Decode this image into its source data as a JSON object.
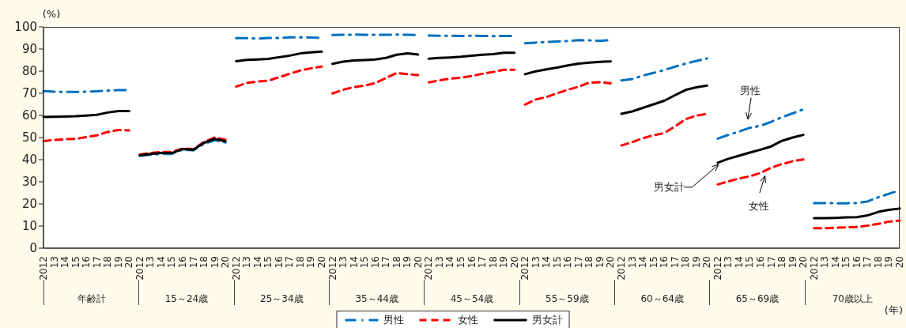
{
  "chart_data": {
    "type": "line",
    "ylabel": "(%)",
    "xlabel": "(年)",
    "categories": [
      "2012",
      "13",
      "14",
      "15",
      "16",
      "17",
      "18",
      "19",
      "20",
      "2012",
      "13",
      "14",
      "15",
      "16",
      "17",
      "18",
      "19",
      "20",
      "2012",
      "13",
      "14",
      "15",
      "16",
      "17",
      "18",
      "19",
      "20",
      "2012",
      "13",
      "14",
      "15",
      "16",
      "17",
      "18",
      "19",
      "20",
      "2012",
      "13",
      "14",
      "15",
      "16",
      "17",
      "18",
      "19",
      "20",
      "2012",
      "13",
      "14",
      "15",
      "16",
      "17",
      "18",
      "19",
      "20",
      "2012",
      "13",
      "14",
      "15",
      "16",
      "17",
      "18",
      "19",
      "20",
      "2012",
      "13",
      "14",
      "15",
      "16",
      "17",
      "18",
      "19",
      "20",
      "2012",
      "13",
      "14",
      "15",
      "16",
      "17",
      "18",
      "19",
      "20"
    ],
    "series": [
      {
        "name": "男性",
        "color": "#0070c0",
        "line_style": "dashdot",
        "values": [
          71.0,
          70.7,
          70.6,
          70.6,
          70.7,
          70.9,
          71.2,
          71.4,
          71.4,
          41.7,
          42.2,
          42.6,
          42.6,
          44.6,
          44.2,
          47.2,
          48.8,
          47.8,
          94.9,
          94.9,
          94.7,
          95.0,
          95.0,
          95.3,
          95.3,
          95.2,
          95.1,
          96.3,
          96.4,
          96.5,
          96.4,
          96.4,
          96.4,
          96.5,
          96.4,
          96.3,
          96.1,
          96.0,
          96.0,
          95.9,
          96.0,
          95.9,
          95.8,
          95.9,
          95.9,
          92.6,
          92.9,
          93.2,
          93.4,
          93.6,
          94.0,
          93.9,
          93.7,
          94.0,
          75.8,
          76.4,
          78.0,
          79.2,
          80.5,
          82.0,
          83.4,
          84.6,
          85.7,
          49.5,
          51.2,
          52.7,
          54.4,
          55.3,
          57.1,
          59.2,
          60.9,
          62.7,
          20.4,
          20.4,
          20.3,
          20.3,
          20.4,
          21.1,
          23.0,
          24.6,
          26.1
        ]
      },
      {
        "name": "女性",
        "color": "#ff0000",
        "line_style": "dashed",
        "values": [
          48.4,
          48.9,
          49.2,
          49.4,
          50.2,
          51.0,
          52.5,
          53.4,
          53.2,
          42.3,
          43.0,
          43.5,
          43.5,
          45.0,
          44.8,
          48.0,
          50.0,
          49.0,
          73.0,
          74.7,
          75.3,
          75.7,
          77.2,
          78.8,
          80.3,
          81.3,
          82.1,
          69.9,
          71.6,
          72.8,
          73.4,
          74.6,
          76.9,
          79.2,
          78.6,
          78.2,
          74.9,
          75.8,
          76.6,
          77.0,
          77.8,
          78.8,
          79.6,
          80.6,
          80.6,
          64.9,
          67.2,
          68.3,
          70.0,
          71.6,
          73.0,
          74.8,
          75.0,
          74.5,
          46.4,
          47.9,
          49.7,
          51.0,
          52.0,
          55.0,
          58.3,
          59.9,
          60.7,
          28.8,
          30.2,
          31.5,
          32.5,
          34.0,
          36.4,
          38.0,
          39.3,
          40.1,
          9.0,
          9.0,
          9.2,
          9.4,
          9.6,
          10.2,
          11.0,
          12.0,
          12.5
        ]
      },
      {
        "name": "男女計",
        "color": "#000000",
        "line_style": "solid",
        "values": [
          59.3,
          59.4,
          59.5,
          59.6,
          59.9,
          60.3,
          61.3,
          62.0,
          62.0,
          42.0,
          42.6,
          43.0,
          43.0,
          44.8,
          44.5,
          47.6,
          49.4,
          48.3,
          84.5,
          85.1,
          85.3,
          85.5,
          86.3,
          87.0,
          88.0,
          88.5,
          88.8,
          83.3,
          84.3,
          84.8,
          85.0,
          85.3,
          86.0,
          87.4,
          88.0,
          87.5,
          85.6,
          86.0,
          86.2,
          86.5,
          87.0,
          87.4,
          87.7,
          88.3,
          88.3,
          78.6,
          79.9,
          80.8,
          81.6,
          82.6,
          83.4,
          83.8,
          84.2,
          84.4,
          60.7,
          61.8,
          63.4,
          65.0,
          66.6,
          69.1,
          71.5,
          72.7,
          73.5,
          38.6,
          40.4,
          41.8,
          43.2,
          44.5,
          46.0,
          48.5,
          50.0,
          51.2,
          13.6,
          13.6,
          13.7,
          13.9,
          14.0,
          14.8,
          16.4,
          17.3,
          17.9
        ]
      }
    ],
    "ylim": [
      0,
      100
    ],
    "yticks": [
      0,
      10,
      20,
      30,
      40,
      50,
      60,
      70,
      80,
      90,
      100
    ],
    "legend": "bottom",
    "marker": "none",
    "annotations": [
      "年齢計",
      "15～24歳",
      "25～34歳",
      "35～44歳",
      "45～54歳",
      "55～59歳",
      "60～64歳",
      "65～69歳",
      "70歳以上",
      {
        "text": "男性"
      },
      {
        "text": "女性"
      },
      {
        "text": "男女計"
      }
    ]
  }
}
